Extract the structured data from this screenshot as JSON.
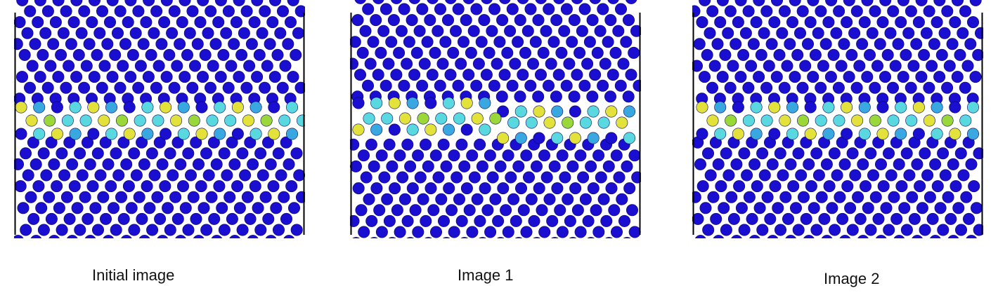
{
  "panels": [
    {
      "caption": "Initial image",
      "boundary": "flat",
      "shift": 0
    },
    {
      "caption": "Image 1",
      "boundary": "kinked",
      "shift": 2
    },
    {
      "caption": "Image 2",
      "boundary": "flat",
      "shift": 4
    }
  ],
  "colors": {
    "bulk": "#1a0fd0",
    "interface_cyan": "#5ad8e0",
    "interface_yellow": "#e2e23a",
    "interface_green": "#9ad83a",
    "interface_blue": "#3aa8e0",
    "frame": "#000000"
  }
}
